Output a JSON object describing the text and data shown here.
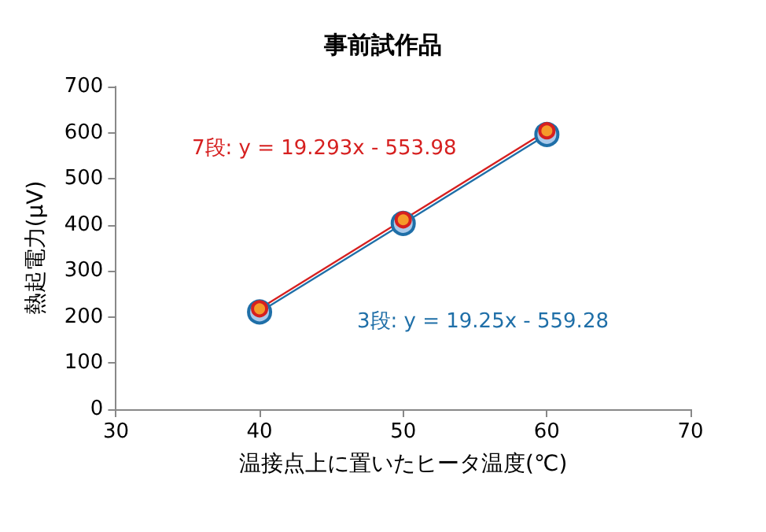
{
  "chart_data": {
    "type": "line",
    "title": "事前試作品",
    "xlabel": "温接点上に置いたヒータ温度(℃)",
    "ylabel": "熱起電力(μV)",
    "x": [
      40,
      50,
      60
    ],
    "series": [
      {
        "color": "#1f6fa8",
        "values": [
          211,
          403,
          596
        ]
      },
      {
        "color": "#d62020",
        "values": [
          218,
          411,
          604
        ]
      }
    ],
    "annotations": [
      "3段: y = 19.25x - 559.28",
      "7段: y = 19.293x - 553.98"
    ],
    "xlim": [
      30,
      70
    ],
    "xticks": [
      30,
      40,
      50,
      60,
      70
    ],
    "ylim": [
      0,
      700
    ],
    "yticks": [
      0,
      100,
      200,
      300,
      400,
      500,
      600,
      700
    ],
    "grid": false,
    "marker": "circle",
    "line_style": "solid"
  }
}
